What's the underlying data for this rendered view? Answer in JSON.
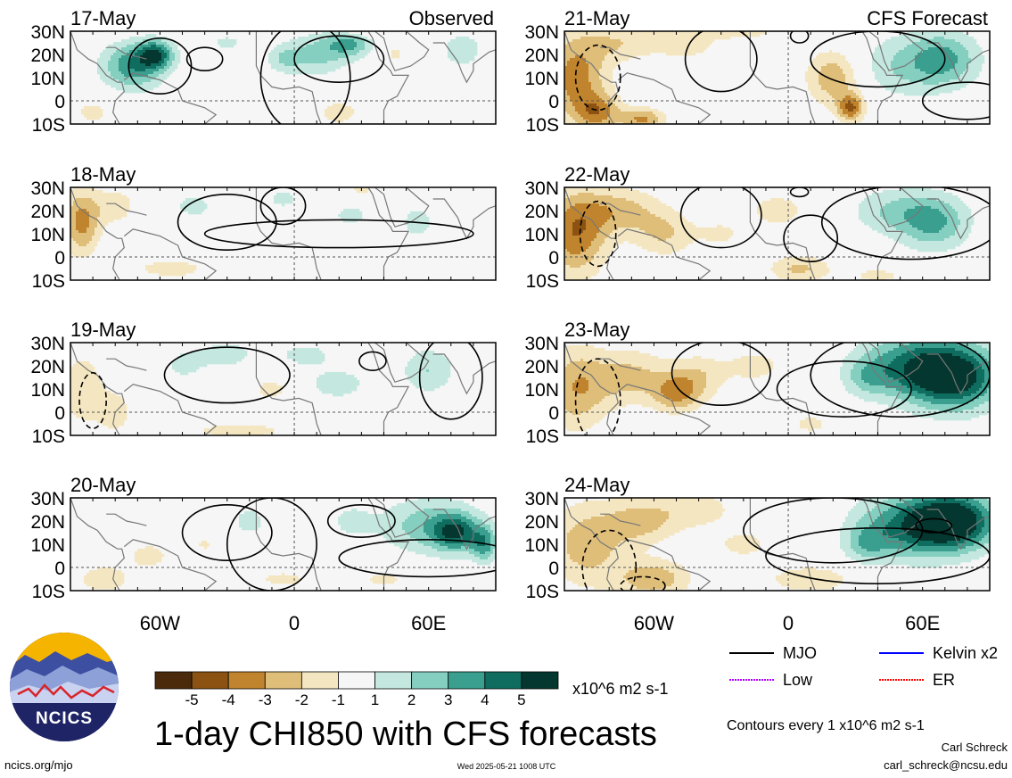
{
  "chart_data": {
    "type": "heatmap",
    "variable": "1-day CHI850 with CFS forecasts",
    "units": "x10^6 m2 s-1",
    "columns": [
      {
        "label": "Observed",
        "panels": [
          "17-May",
          "18-May",
          "19-May",
          "20-May"
        ]
      },
      {
        "label": "CFS Forecast",
        "panels": [
          "21-May",
          "22-May",
          "23-May",
          "24-May"
        ]
      }
    ],
    "lat_ticks": [
      "30N",
      "20N",
      "10N",
      "0",
      "10S"
    ],
    "lon_ticks": [
      "60W",
      "0",
      "60E"
    ],
    "lat_range": [
      -10,
      30
    ],
    "lon_range": [
      -100,
      90
    ],
    "colorbar": {
      "levels": [
        -5,
        -4,
        -3,
        -2,
        -1,
        1,
        2,
        3,
        4,
        5
      ],
      "tick_labels": [
        "-5",
        "-4",
        "-3",
        "-2",
        "-1",
        "1",
        "2",
        "3",
        "4",
        "5"
      ],
      "colors": [
        "#4a2a0a",
        "#8c5212",
        "#c0842e",
        "#dfbe7a",
        "#f4e6c0",
        "#f6f6f6",
        "#c4e8df",
        "#85cfc0",
        "#3a9f8f",
        "#0f6d60",
        "#04372f"
      ]
    },
    "legend": [
      {
        "label": "MJO",
        "color": "#000000"
      },
      {
        "label": "Kelvin x2",
        "color": "#0000ff"
      },
      {
        "label": "Low",
        "color": "#b000ff"
      },
      {
        "label": "ER",
        "color": "#ff0000"
      }
    ],
    "contour_note": "Contours every 1 x10^6 m2 s-1"
  },
  "footer": {
    "source": "ncics.org/mjo",
    "timestamp": "Wed 2025-05-21 1008 UTC",
    "author": "Carl Schreck",
    "email": "carl_schreck@ncsu.edu"
  },
  "logo": {
    "text": "NCICS"
  }
}
